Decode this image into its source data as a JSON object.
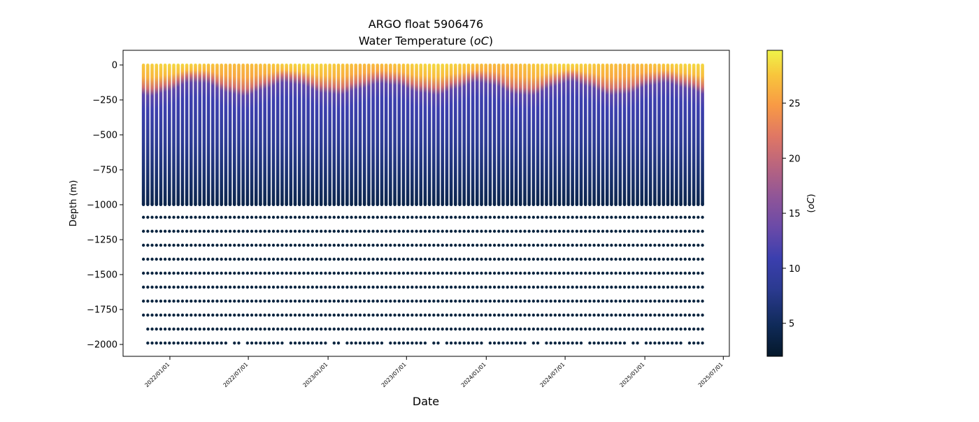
{
  "chart_data": {
    "type": "scatter",
    "title": "ARGO float 5906476",
    "subtitle": "Water Temperature (",
    "subtitle_unit": "oC",
    "subtitle_close": ")",
    "xlabel": "Date",
    "ylabel": "Depth (m)",
    "colorbar_label_open": "(",
    "colorbar_label_close": ")",
    "colorbar_unit": "oC",
    "colormap": "thermal",
    "color_range": [
      2,
      29.8
    ],
    "colorbar_ticks": [
      5,
      10,
      15,
      20,
      25
    ],
    "xlim": [
      "2021-09-15",
      "2025-07-15"
    ],
    "ylim": [
      -2085,
      105
    ],
    "x_ticks": [
      "2022/01/01",
      "2022/07/01",
      "2023/01/01",
      "2023/07/01",
      "2024/01/01",
      "2024/07/01",
      "2025/01/01",
      "2025/07/01"
    ],
    "y_ticks": [
      0,
      -250,
      -500,
      -750,
      -1000,
      -1250,
      -1500,
      -1750,
      -2000
    ],
    "profiles": {
      "first_date": "2021-11-01",
      "last_date": "2025-05-20",
      "interval_days": 10,
      "surface_depth_m": 0,
      "continuous_bottom_m": -1000,
      "deep_sample_depths_m": [
        -1090,
        -1190,
        -1290,
        -1390,
        -1490,
        -1590,
        -1690,
        -1790,
        -1890,
        -1990
      ],
      "deep_temperature_c": 3.2,
      "mixed_layer_temp_c": [
        27,
        28.5
      ],
      "mixed_layer_depth_m": [
        -75,
        -180
      ],
      "temp_at_1000m_c": 4
    },
    "colors": {
      "deep_dots": "#0a2540",
      "axes": "#000000"
    }
  }
}
